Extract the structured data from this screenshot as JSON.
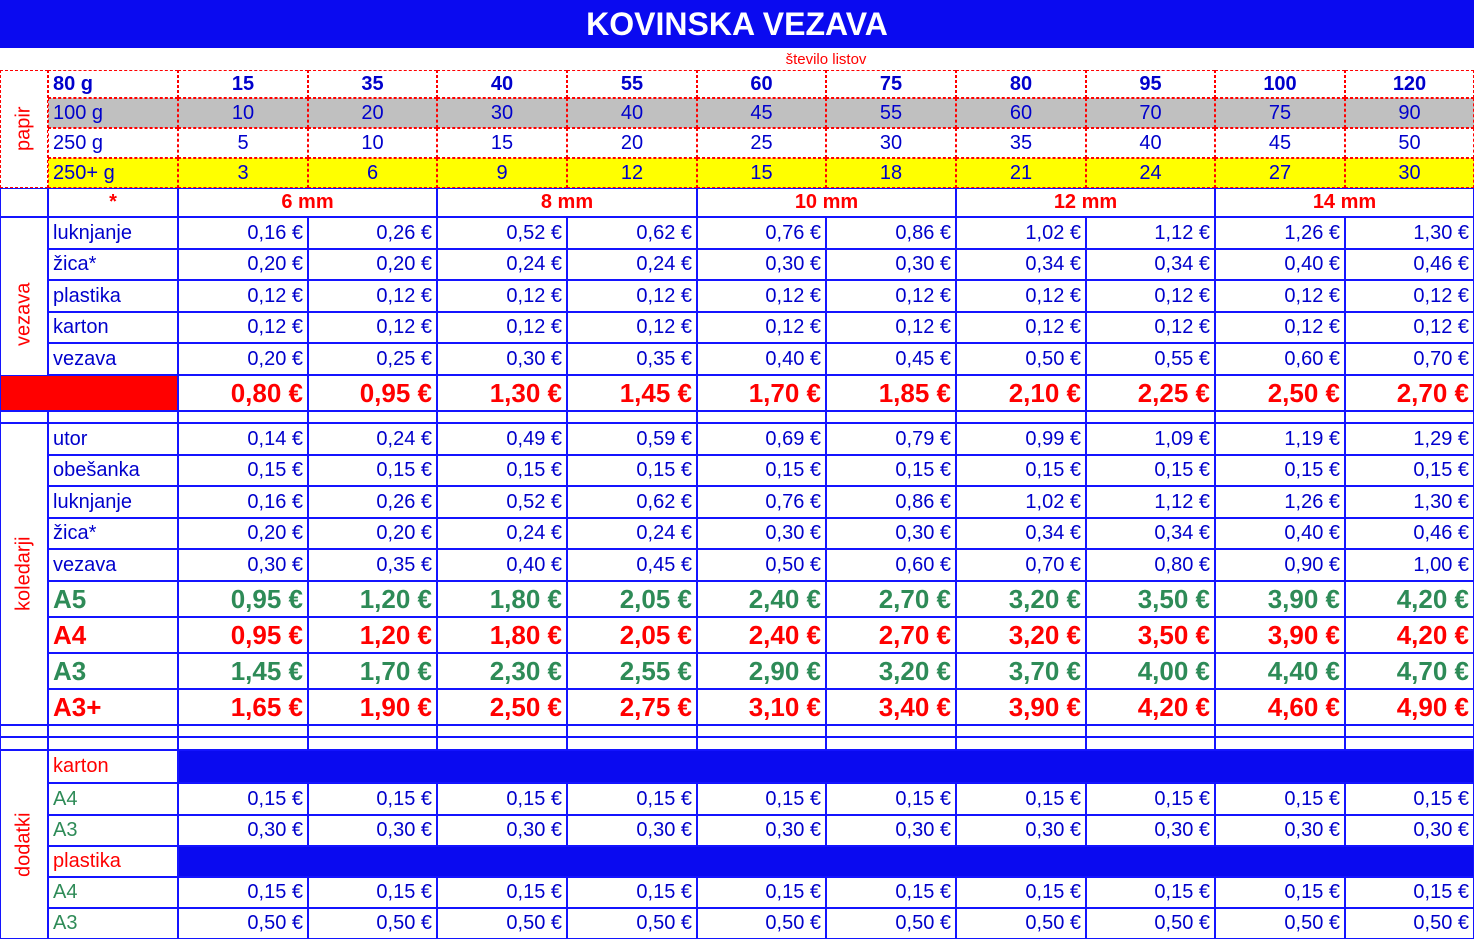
{
  "title": "KOVINSKA VEZAVA",
  "sheets_label": "število listov",
  "paper": {
    "label": "papir",
    "rows": [
      {
        "name": "80 g",
        "values": [
          15,
          35,
          40,
          55,
          60,
          75,
          80,
          95,
          100,
          120
        ]
      },
      {
        "name": "100 g",
        "bg": "#c0c0c0",
        "values": [
          10,
          20,
          30,
          40,
          45,
          55,
          60,
          70,
          75,
          90
        ]
      },
      {
        "name": "250 g",
        "values": [
          5,
          10,
          15,
          20,
          25,
          30,
          35,
          40,
          45,
          50
        ]
      },
      {
        "name": "250+ g",
        "bg": "#ffff00",
        "values": [
          3,
          6,
          9,
          12,
          15,
          18,
          21,
          24,
          27,
          30
        ]
      }
    ]
  },
  "star": "*",
  "sizes": [
    "6 mm",
    "8 mm",
    "10 mm",
    "12 mm",
    "14 mm"
  ],
  "binding": {
    "label": "vezava",
    "rows": [
      {
        "name": "luknjanje",
        "values": [
          "0,16 €",
          "0,26 €",
          "0,52 €",
          "0,62 €",
          "0,76 €",
          "0,86 €",
          "1,02 €",
          "1,12 €",
          "1,26 €",
          "1,30 €"
        ]
      },
      {
        "name": "žica*",
        "values": [
          "0,20 €",
          "0,20 €",
          "0,24 €",
          "0,24 €",
          "0,30 €",
          "0,30 €",
          "0,34 €",
          "0,34 €",
          "0,40 €",
          "0,46 €"
        ]
      },
      {
        "name": "plastika",
        "values": [
          "0,12 €",
          "0,12 €",
          "0,12 €",
          "0,12 €",
          "0,12 €",
          "0,12 €",
          "0,12 €",
          "0,12 €",
          "0,12 €",
          "0,12 €"
        ]
      },
      {
        "name": "karton",
        "values": [
          "0,12 €",
          "0,12 €",
          "0,12 €",
          "0,12 €",
          "0,12 €",
          "0,12 €",
          "0,12 €",
          "0,12 €",
          "0,12 €",
          "0,12 €"
        ]
      },
      {
        "name": "vezava",
        "values": [
          "0,20 €",
          "0,25 €",
          "0,30 €",
          "0,35 €",
          "0,40 €",
          "0,45 €",
          "0,50 €",
          "0,55 €",
          "0,60 €",
          "0,70 €"
        ]
      }
    ],
    "totals": [
      {
        "color": "#ff0000",
        "values": [
          "0,80 €",
          "0,95 €",
          "1,30 €",
          "1,45 €",
          "1,70 €",
          "1,85 €",
          "2,10 €",
          "2,25 €",
          "2,50 €",
          "2,70 €"
        ]
      }
    ]
  },
  "calendars": {
    "label": "koledarji",
    "rows": [
      {
        "name": "utor",
        "values": [
          "0,14 €",
          "0,24 €",
          "0,49 €",
          "0,59 €",
          "0,69 €",
          "0,79 €",
          "0,99 €",
          "1,09 €",
          "1,19 €",
          "1,29 €"
        ]
      },
      {
        "name": "obešanka",
        "values": [
          "0,15 €",
          "0,15 €",
          "0,15 €",
          "0,15 €",
          "0,15 €",
          "0,15 €",
          "0,15 €",
          "0,15 €",
          "0,15 €",
          "0,15 €"
        ]
      },
      {
        "name": "luknjanje",
        "values": [
          "0,16 €",
          "0,26 €",
          "0,52 €",
          "0,62 €",
          "0,76 €",
          "0,86 €",
          "1,02 €",
          "1,12 €",
          "1,26 €",
          "1,30 €"
        ]
      },
      {
        "name": "žica*",
        "values": [
          "0,20 €",
          "0,20 €",
          "0,24 €",
          "0,24 €",
          "0,30 €",
          "0,30 €",
          "0,34 €",
          "0,34 €",
          "0,40 €",
          "0,46 €"
        ]
      },
      {
        "name": "vezava",
        "values": [
          "0,30 €",
          "0,35 €",
          "0,40 €",
          "0,45 €",
          "0,50 €",
          "0,60 €",
          "0,70 €",
          "0,80 €",
          "0,90 €",
          "1,00 €"
        ]
      }
    ],
    "totals": [
      {
        "name": "A5",
        "color": "#2e8b57",
        "values": [
          "0,95 €",
          "1,20 €",
          "1,80 €",
          "2,05 €",
          "2,40 €",
          "2,70 €",
          "3,20 €",
          "3,50 €",
          "3,90 €",
          "4,20 €"
        ]
      },
      {
        "name": "A4",
        "color": "#ff0000",
        "values": [
          "0,95 €",
          "1,20 €",
          "1,80 €",
          "2,05 €",
          "2,40 €",
          "2,70 €",
          "3,20 €",
          "3,50 €",
          "3,90 €",
          "4,20 €"
        ]
      },
      {
        "name": "A3",
        "color": "#2e8b57",
        "values": [
          "1,45 €",
          "1,70 €",
          "2,30 €",
          "2,55 €",
          "2,90 €",
          "3,20 €",
          "3,70 €",
          "4,00 €",
          "4,40 €",
          "4,70 €"
        ]
      },
      {
        "name": "A3+",
        "color": "#ff0000",
        "values": [
          "1,65 €",
          "1,90 €",
          "2,50 €",
          "2,75 €",
          "3,10 €",
          "3,40 €",
          "3,90 €",
          "4,20 €",
          "4,60 €",
          "4,90 €"
        ]
      }
    ]
  },
  "extras": {
    "label": "dodatki",
    "groups": [
      {
        "name": "karton",
        "rows": [
          {
            "name": "A4",
            "values": [
              "0,15 €",
              "0,15 €",
              "0,15 €",
              "0,15 €",
              "0,15 €",
              "0,15 €",
              "0,15 €",
              "0,15 €",
              "0,15 €",
              "0,15 €"
            ]
          },
          {
            "name": "A3",
            "values": [
              "0,30 €",
              "0,30 €",
              "0,30 €",
              "0,30 €",
              "0,30 €",
              "0,30 €",
              "0,30 €",
              "0,30 €",
              "0,30 €",
              "0,30 €"
            ]
          }
        ]
      },
      {
        "name": "plastika",
        "rows": [
          {
            "name": "A4",
            "values": [
              "0,15 €",
              "0,15 €",
              "0,15 €",
              "0,15 €",
              "0,15 €",
              "0,15 €",
              "0,15 €",
              "0,15 €",
              "0,15 €",
              "0,15 €"
            ]
          },
          {
            "name": "A3",
            "values": [
              "0,50 €",
              "0,50 €",
              "0,50 €",
              "0,50 €",
              "0,50 €",
              "0,50 €",
              "0,50 €",
              "0,50 €",
              "0,50 €",
              "0,50 €"
            ]
          }
        ]
      }
    ]
  }
}
